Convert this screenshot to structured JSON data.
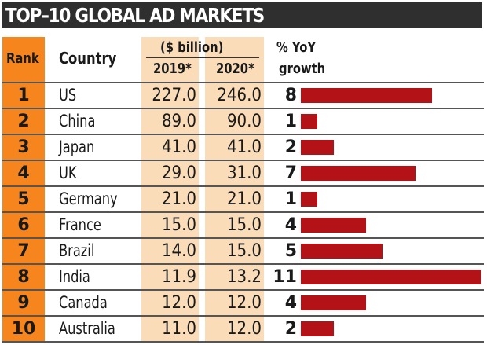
{
  "title": "TOP–10 GLOBAL AD MARKETS",
  "header": {
    "rank": "Rank",
    "country": "Country",
    "unit": "($ billion)",
    "year1": "2019*",
    "year2": "2020*",
    "growth_line1": "% YoY",
    "growth_line2": "growth"
  },
  "colors": {
    "title_bg": "#2f2f2f",
    "rank_bg": "#f7851e",
    "value_bg": "#fbdcb8",
    "bar": "#b31217"
  },
  "chart_data": {
    "type": "table",
    "title": "TOP–10 GLOBAL AD MARKETS",
    "columns": [
      "Rank",
      "Country",
      "2019* ($ billion)",
      "2020* ($ billion)",
      "% YoY growth"
    ],
    "growth_bar_max": 11,
    "rows": [
      {
        "rank": "1",
        "country": "US",
        "y2019": "227.0",
        "y2020": "246.0",
        "growth": 8
      },
      {
        "rank": "2",
        "country": "China",
        "y2019": "89.0",
        "y2020": "90.0",
        "growth": 1
      },
      {
        "rank": "3",
        "country": "Japan",
        "y2019": "41.0",
        "y2020": "41.0",
        "growth": 2
      },
      {
        "rank": "4",
        "country": "UK",
        "y2019": "29.0",
        "y2020": "31.0",
        "growth": 7
      },
      {
        "rank": "5",
        "country": "Germany",
        "y2019": "21.0",
        "y2020": "21.0",
        "growth": 1
      },
      {
        "rank": "6",
        "country": "France",
        "y2019": "15.0",
        "y2020": "15.0",
        "growth": 4
      },
      {
        "rank": "7",
        "country": "Brazil",
        "y2019": "14.0",
        "y2020": "15.0",
        "growth": 5
      },
      {
        "rank": "8",
        "country": "India",
        "y2019": "11.9",
        "y2020": "13.2",
        "growth": 11
      },
      {
        "rank": "9",
        "country": "Canada",
        "y2019": "12.0",
        "y2020": "12.0",
        "growth": 4
      },
      {
        "rank": "10",
        "country": "Australia",
        "y2019": "11.0",
        "y2020": "12.0",
        "growth": 2
      }
    ]
  }
}
